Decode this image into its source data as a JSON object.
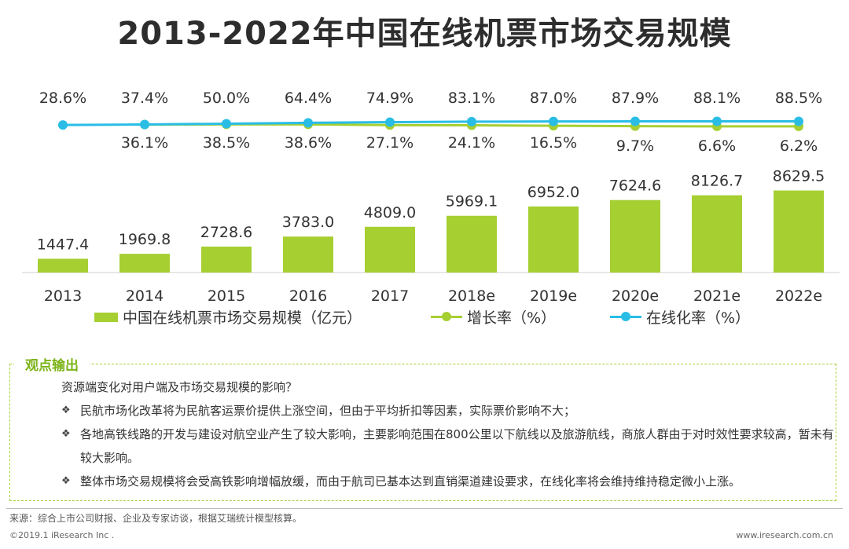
{
  "title": "2013-2022年中国在线机票市场交易规模",
  "chart_data": {
    "type": "bar",
    "title": "2013-2022年中国在线机票市场交易规模",
    "categories": [
      "2013",
      "2014",
      "2015",
      "2016",
      "2017",
      "2018e",
      "2019e",
      "2020e",
      "2021e",
      "2022e"
    ],
    "series": [
      {
        "name": "中国在线机票市场交易规模（亿元）",
        "type": "bar",
        "values": [
          1447.4,
          1969.8,
          2728.6,
          3783.0,
          4809.0,
          5969.1,
          6952.0,
          7624.6,
          8126.7,
          8629.5
        ],
        "labels": [
          "1447.4",
          "1969.8",
          "2728.6",
          "3783.0",
          "4809.0",
          "5969.1",
          "6952.0",
          "7624.6",
          "8126.7",
          "8629.5"
        ]
      },
      {
        "name": "增长率（%）",
        "type": "line",
        "values": [
          null,
          36.1,
          38.5,
          38.6,
          27.1,
          24.1,
          16.5,
          9.7,
          6.6,
          6.2
        ],
        "labels": [
          "",
          "36.1%",
          "38.5%",
          "38.6%",
          "27.1%",
          "24.1%",
          "16.5%",
          "9.7%",
          "6.6%",
          "6.2%"
        ]
      },
      {
        "name": "在线化率（%）",
        "type": "line",
        "values": [
          28.6,
          37.4,
          50.0,
          64.4,
          74.9,
          83.1,
          87.0,
          87.9,
          88.1,
          88.5
        ],
        "labels": [
          "28.6%",
          "37.4%",
          "50.0%",
          "64.4%",
          "74.9%",
          "83.1%",
          "87.0%",
          "87.9%",
          "88.1%",
          "88.5%"
        ]
      }
    ],
    "colors": {
      "bar": "#a6cf32",
      "growth": "#a6cf32",
      "online": "#29bde6"
    },
    "ylim": [
      0,
      9500
    ],
    "xlabel": "",
    "ylabel": ""
  },
  "legend": {
    "bar": "中国在线机票市场交易规模（亿元）",
    "growth": "增长率（%）",
    "online": "在线化率（%）"
  },
  "insight": {
    "title": "观点输出",
    "question": "资源端变化对用户端及市场交易规模的影响？",
    "bullets": [
      "民航市场化改革将为民航客运票价提供上涨空间，但由于平均折扣等因素，实际票价影响不大；",
      "各地高铁线路的开发与建设对航空业产生了较大影响，主要影响范围在800公里以下航线以及旅游航线，商旅人群由于对时效性要求较高，暂未有较大影响。",
      "整体市场交易规模将会受高铁影响增幅放缓，而由于航司已基本达到直销渠道建设要求，在线化率将会维持维持稳定微小上涨。"
    ],
    "bullet_mark": "❖"
  },
  "footer": {
    "source": "来源：综合上市公司财报、企业及专家访谈，根据艾瑞统计模型核算。",
    "copyright": "©2019.1 iResearch Inc .",
    "url": "www.iresearch.com.cn"
  }
}
